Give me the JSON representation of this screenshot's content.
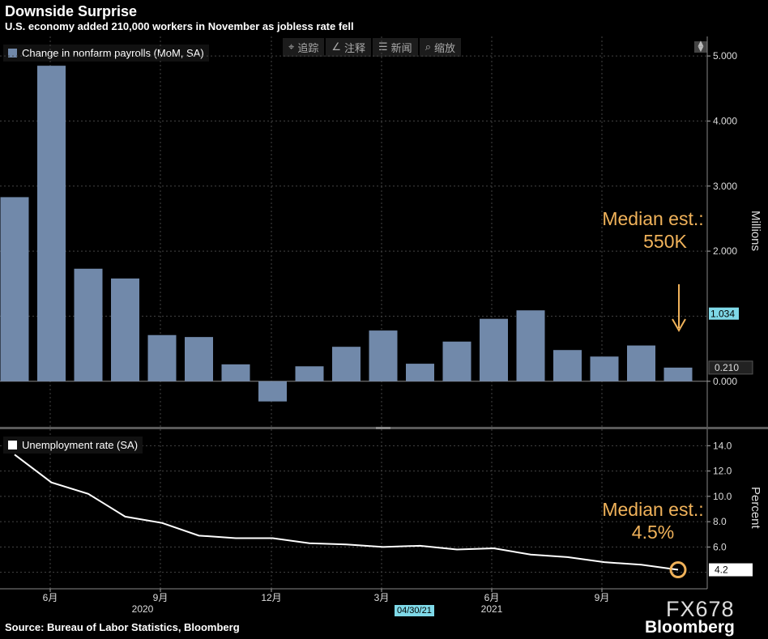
{
  "header": {
    "title": "Downside Surprise",
    "subtitle": "U.S. economy added 210,000 workers in November as jobless rate fell"
  },
  "toolbar": {
    "track_label": "追踪",
    "annotate_label": "注释",
    "news_label": "新闻",
    "zoom_label": "缩放"
  },
  "footer": {
    "source": "Source: Bureau of Labor Statistics, Bloomberg",
    "ticker": "FX678",
    "brand": "Bloomberg",
    "date_flag": "04/30/21"
  },
  "annotations": {
    "payrolls_est": [
      "Median est.:",
      "550K"
    ],
    "rate_est": [
      "Median est.:",
      "4.5%"
    ]
  },
  "colors": {
    "bar": "#7189aa",
    "line": "#ffffff",
    "accent": "#f0b25a",
    "highlight": "#7fd9e8"
  },
  "chart_data": [
    {
      "type": "bar",
      "legend": "Change in nonfarm payrolls (MoM, SA)",
      "ylabel": "Millions",
      "ylim": [
        -0.7,
        5.3
      ],
      "yticks": [
        "5.000",
        "4.000",
        "3.000",
        "2.000",
        "1.034",
        "0.210",
        "0.000"
      ],
      "grid": true,
      "legend_position": "top-left",
      "categories": [
        "2020-05",
        "2020-06",
        "2020-07",
        "2020-08",
        "2020-09",
        "2020-10",
        "2020-11",
        "2020-12",
        "2021-01",
        "2021-02",
        "2021-03",
        "2021-04",
        "2021-05",
        "2021-06",
        "2021-07",
        "2021-08",
        "2021-09",
        "2021-10",
        "2021-11"
      ],
      "series": [
        {
          "name": "Change in nonfarm payrolls (MoM, SA)",
          "values": [
            2.83,
            4.85,
            1.73,
            1.58,
            0.71,
            0.68,
            0.26,
            -0.31,
            0.23,
            0.53,
            0.78,
            0.27,
            0.61,
            0.96,
            1.09,
            0.48,
            0.38,
            0.55,
            0.21
          ]
        }
      ],
      "highlight_labels": [
        {
          "value": "1.034",
          "style": "highlight"
        },
        {
          "value": "0.210",
          "style": "dark"
        }
      ]
    },
    {
      "type": "line",
      "legend": "Unemployment rate (SA)",
      "ylabel": "Percent",
      "ylim": [
        2.7,
        15.3
      ],
      "yticks": [
        "14.0",
        "12.0",
        "10.0",
        "8.0",
        "6.0",
        "4.2"
      ],
      "grid": true,
      "legend_position": "top-left",
      "x_tick_labels": [
        "6月",
        "9月",
        "12月",
        "3月",
        "6月",
        "9月"
      ],
      "x_year_labels": [
        "2020",
        "2021"
      ],
      "categories": [
        "2020-05",
        "2020-06",
        "2020-07",
        "2020-08",
        "2020-09",
        "2020-10",
        "2020-11",
        "2020-12",
        "2021-01",
        "2021-02",
        "2021-03",
        "2021-04",
        "2021-05",
        "2021-06",
        "2021-07",
        "2021-08",
        "2021-09",
        "2021-10",
        "2021-11"
      ],
      "series": [
        {
          "name": "Unemployment rate (SA)",
          "values": [
            13.3,
            11.1,
            10.2,
            8.4,
            7.9,
            6.9,
            6.7,
            6.7,
            6.3,
            6.2,
            6.0,
            6.1,
            5.8,
            5.9,
            5.4,
            5.2,
            4.8,
            4.6,
            4.2
          ]
        }
      ],
      "last_value_label": "4.2"
    }
  ]
}
